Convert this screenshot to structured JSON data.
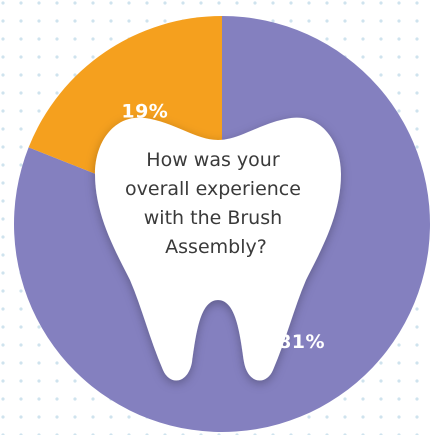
{
  "chart_data": {
    "type": "pie",
    "title": "How was your overall experience with the Brush Assembly?",
    "title_lines": [
      "How was your",
      "overall experience",
      "with the Brush",
      "Assembly?"
    ],
    "slices": [
      {
        "label": "81%",
        "value": 81,
        "color": "#8480bf"
      },
      {
        "label": "19%",
        "value": 19,
        "color": "#f5a01e"
      }
    ],
    "center_icon": "tooth-icon"
  },
  "colors": {
    "primary_slice": "#8480bf",
    "secondary_slice": "#f5a01e",
    "tooth": "#ffffff",
    "dots": "#cfe3ee"
  }
}
